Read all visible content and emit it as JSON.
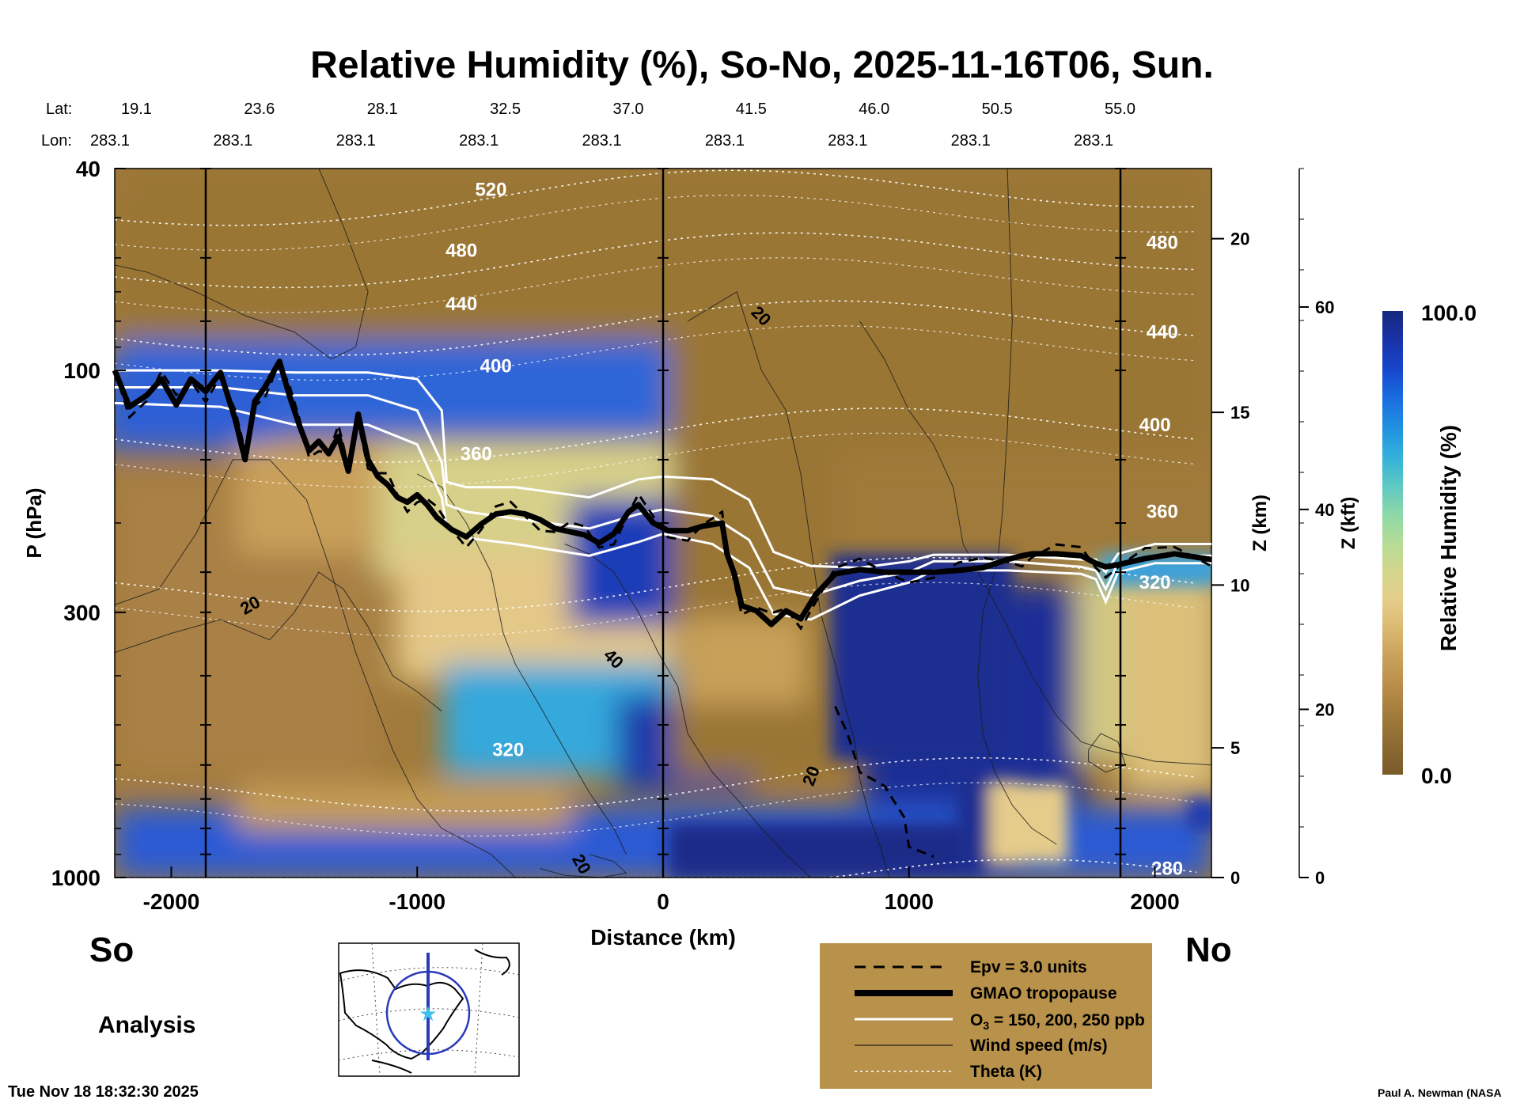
{
  "chart_data": {
    "type": "heatmap",
    "title": "Relative Humidity (%), So-No, 2025-11-16T06, Sun.",
    "xlabel": "Distance (km)",
    "ylabel": "P (hPa)",
    "z_km_label": "Z (km)",
    "z_kft_label": "Z (kft)",
    "xlim": [
      -2230,
      2230
    ],
    "ylim": [
      1000,
      40
    ],
    "y_scale": "log",
    "x_ticks": [
      -2000,
      -1000,
      0,
      1000,
      2000
    ],
    "y_ticks": [
      40,
      100,
      300,
      1000
    ],
    "z_km_ticks": [
      {
        "label": "0",
        "p": 1000
      },
      {
        "label": "5",
        "p": 555
      },
      {
        "label": "10",
        "p": 265
      },
      {
        "label": "15",
        "p": 121
      },
      {
        "label": "20",
        "p": 55
      }
    ],
    "z_kft_ticks": [
      {
        "label": "0",
        "p": 1000
      },
      {
        "label": "20",
        "p": 466
      },
      {
        "label": "40",
        "p": 188
      },
      {
        "label": "60",
        "p": 75
      }
    ],
    "lat_label": "Lat:",
    "lon_label": "Lon:",
    "latlon": [
      {
        "x": -2230,
        "lat": "19.1",
        "lon": "283.1"
      },
      {
        "x": -1730,
        "lat": "23.6",
        "lon": "283.1"
      },
      {
        "x": -1230,
        "lat": "28.1",
        "lon": "283.1"
      },
      {
        "x": -730,
        "lat": "32.5",
        "lon": "283.1"
      },
      {
        "x": -230,
        "lat": "37.0",
        "lon": "283.1"
      },
      {
        "x": 270,
        "lat": "41.5",
        "lon": "283.1"
      },
      {
        "x": 770,
        "lat": "46.0",
        "lon": "283.1"
      },
      {
        "x": 1270,
        "lat": "50.5",
        "lon": "283.1"
      },
      {
        "x": 1770,
        "lat": "55.0",
        "lon": "283.1"
      }
    ],
    "vertical_lines_x": [
      -1860,
      0,
      1860
    ],
    "tropopause": {
      "x": [
        -2230,
        -2170,
        -2100,
        -2040,
        -1980,
        -1920,
        -1860,
        -1800,
        -1740,
        -1700,
        -1660,
        -1620,
        -1560,
        -1520,
        -1480,
        -1440,
        -1400,
        -1360,
        -1320,
        -1280,
        -1240,
        -1200,
        -1160,
        -1120,
        -1080,
        -1040,
        -1000,
        -960,
        -920,
        -860,
        -800,
        -740,
        -680,
        -620,
        -560,
        -500,
        -440,
        -380,
        -320,
        -260,
        -200,
        -140,
        -100,
        -40,
        20,
        100,
        160,
        240,
        260,
        290,
        320,
        380,
        440,
        500,
        560,
        620,
        700,
        800,
        900,
        1000,
        1100,
        1200,
        1300,
        1400,
        1460,
        1500,
        1600,
        1700,
        1760,
        1800,
        1860,
        1960,
        2080,
        2230
      ],
      "p": [
        100,
        118,
        112,
        104,
        117,
        104,
        110,
        101,
        125,
        150,
        115,
        108,
        96,
        112,
        128,
        144,
        138,
        146,
        135,
        158,
        122,
        150,
        162,
        168,
        178,
        182,
        176,
        184,
        195,
        206,
        213,
        201,
        192,
        190,
        192,
        197,
        205,
        208,
        211,
        219,
        210,
        190,
        184,
        200,
        207,
        207,
        203,
        200,
        230,
        252,
        291,
        298,
        317,
        298,
        309,
        277,
        252,
        247,
        250,
        250,
        250,
        248,
        245,
        236,
        232,
        230,
        230,
        232,
        240,
        244,
        241,
        235,
        230,
        236
      ],
      "label": "GMAO tropopause"
    },
    "ozone_contours": {
      "label": "O₃ = 150, 200, 250 ppb",
      "values_ppb": [
        150,
        200,
        250
      ],
      "series": [
        {
          "x": [
            -2230,
            -1800,
            -1500,
            -1200,
            -1000,
            -900,
            -880,
            -800,
            -600,
            -300,
            -100,
            0,
            200,
            350,
            450,
            600,
            800,
            1000,
            1100,
            1400,
            1700,
            1760,
            1800,
            1850,
            2000,
            2230
          ],
          "p": [
            100,
            100,
            101,
            101,
            104,
            120,
            166,
            170,
            170,
            178,
            164,
            162,
            164,
            180,
            228,
            243,
            245,
            238,
            231,
            231,
            236,
            236,
            250,
            230,
            220,
            220
          ]
        },
        {
          "x": [
            -2230,
            -1800,
            -1500,
            -1200,
            -1000,
            -900,
            -880,
            -800,
            -600,
            -300,
            -100,
            0,
            200,
            350,
            450,
            600,
            800,
            1000,
            1100,
            1400,
            1700,
            1760,
            1800,
            1850,
            2000,
            2230
          ],
          "p": [
            108,
            108,
            112,
            112,
            120,
            152,
            184,
            190,
            196,
            205,
            192,
            188,
            194,
            216,
            268,
            278,
            260,
            250,
            238,
            238,
            244,
            248,
            270,
            240,
            232,
            232
          ]
        },
        {
          "x": [
            -2230,
            -1800,
            -1500,
            -1200,
            -1000,
            -900,
            -880,
            -800,
            -600,
            -300,
            -100,
            0,
            200,
            350,
            450,
            600,
            800,
            1000,
            1100,
            1400,
            1700,
            1760,
            1800,
            1850,
            2000,
            2230
          ],
          "p": [
            116,
            118,
            128,
            128,
            140,
            178,
            204,
            214,
            220,
            232,
            218,
            210,
            220,
            245,
            302,
            310,
            278,
            262,
            248,
            248,
            252,
            258,
            286,
            250,
            240,
            240
          ]
        }
      ]
    },
    "epv": {
      "label": "Epv = 3.0 units",
      "value_units": 3.0
    },
    "wind_speed": {
      "label": "Wind speed (m/s)",
      "contour_labels": [
        "20",
        "20",
        "40",
        "20",
        "20"
      ]
    },
    "theta": {
      "label": "Theta (K)",
      "levels": [
        280,
        320,
        360,
        400,
        440,
        480,
        520
      ]
    },
    "colorbar": {
      "label": "Relative Humidity (%)",
      "min": 0.0,
      "max": 100.0,
      "min_label": "0.0",
      "max_label": "100.0",
      "colors": [
        "#7a5a2a",
        "#8c6a32",
        "#a07a3a",
        "#b88c48",
        "#c9a05a",
        "#dab870",
        "#e6cc8a",
        "#d4d68c",
        "#b4dc96",
        "#8cd8a8",
        "#5cc8c4",
        "#32b0dc",
        "#2090e0",
        "#1a6ce0",
        "#1646cc",
        "#1a32a8",
        "#16287e"
      ]
    }
  },
  "corner_labels": {
    "south": "So",
    "north": "No",
    "mode": "Analysis"
  },
  "legend": {
    "epv": "Epv = 3.0 units",
    "tropopause": "GMAO tropopause",
    "ozone_prefix": "O",
    "ozone_sub": "3",
    "ozone_suffix": " = 150, 200, 250 ppb",
    "wind": "Wind speed (m/s)",
    "theta": "Theta (K)"
  },
  "footer": {
    "timestamp": "Tue Nov 18 18:32:30 2025",
    "credit": "Paul A. Newman (NASA"
  },
  "colors": {
    "legend_bg": "#b8914a",
    "plot_border": "#000000"
  }
}
